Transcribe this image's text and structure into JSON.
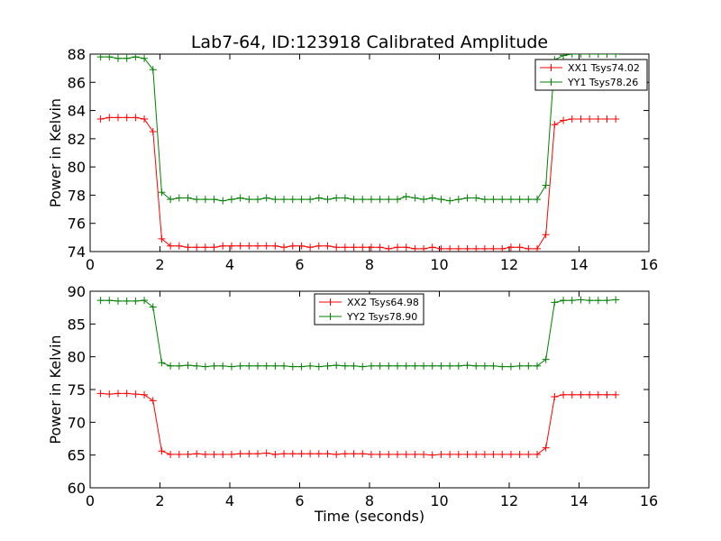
{
  "title": "Lab7-64, ID:123918 Calibrated Amplitude",
  "chart_data": [
    {
      "type": "line",
      "xlim": [
        0,
        16
      ],
      "ylim": [
        74,
        88
      ],
      "xticks": [
        "0",
        "2",
        "4",
        "6",
        "8",
        "10",
        "12",
        "14",
        "16"
      ],
      "yticks": [
        "74",
        "76",
        "78",
        "80",
        "82",
        "84",
        "86",
        "88"
      ],
      "xlabel": "",
      "ylabel": "Power in Kelvin",
      "legend_placement": "top-right",
      "grid": false,
      "series": [
        {
          "name": "XX1 Tsys74.02",
          "color": "#ff0000",
          "x": [
            0.3,
            0.55,
            0.8,
            1.05,
            1.3,
            1.55,
            1.8,
            2.05,
            2.3,
            2.55,
            2.8,
            3.05,
            3.3,
            3.55,
            3.8,
            4.05,
            4.3,
            4.55,
            4.8,
            5.05,
            5.3,
            5.55,
            5.8,
            6.05,
            6.3,
            6.55,
            6.8,
            7.05,
            7.3,
            7.55,
            7.8,
            8.05,
            8.3,
            8.55,
            8.8,
            9.05,
            9.3,
            9.55,
            9.8,
            10.05,
            10.3,
            10.55,
            10.8,
            11.05,
            11.3,
            11.55,
            11.8,
            12.05,
            12.3,
            12.55,
            12.8,
            13.05,
            13.3,
            13.55,
            13.8,
            14.05,
            14.3,
            14.55,
            14.8,
            15.05
          ],
          "y": [
            83.4,
            83.5,
            83.5,
            83.5,
            83.5,
            83.4,
            82.5,
            74.9,
            74.4,
            74.4,
            74.3,
            74.3,
            74.3,
            74.3,
            74.4,
            74.4,
            74.4,
            74.4,
            74.4,
            74.4,
            74.4,
            74.3,
            74.4,
            74.4,
            74.3,
            74.4,
            74.4,
            74.3,
            74.3,
            74.3,
            74.3,
            74.3,
            74.3,
            74.2,
            74.3,
            74.3,
            74.2,
            74.2,
            74.3,
            74.2,
            74.2,
            74.2,
            74.2,
            74.2,
            74.2,
            74.2,
            74.2,
            74.3,
            74.3,
            74.2,
            74.2,
            75.2,
            83.0,
            83.3,
            83.4,
            83.4,
            83.4,
            83.4,
            83.4,
            83.4
          ]
        },
        {
          "name": "YY1 Tsys78.26",
          "color": "#008000",
          "x": [
            0.3,
            0.55,
            0.8,
            1.05,
            1.3,
            1.55,
            1.8,
            2.05,
            2.3,
            2.55,
            2.8,
            3.05,
            3.3,
            3.55,
            3.8,
            4.05,
            4.3,
            4.55,
            4.8,
            5.05,
            5.3,
            5.55,
            5.8,
            6.05,
            6.3,
            6.55,
            6.8,
            7.05,
            7.3,
            7.55,
            7.8,
            8.05,
            8.3,
            8.55,
            8.8,
            9.05,
            9.3,
            9.55,
            9.8,
            10.05,
            10.3,
            10.55,
            10.8,
            11.05,
            11.3,
            11.55,
            11.8,
            12.05,
            12.3,
            12.55,
            12.8,
            13.05,
            13.3,
            13.55,
            13.8,
            14.05,
            14.3,
            14.55,
            14.8,
            15.05
          ],
          "y": [
            87.8,
            87.8,
            87.7,
            87.7,
            87.8,
            87.7,
            86.9,
            78.2,
            77.7,
            77.8,
            77.8,
            77.7,
            77.7,
            77.7,
            77.6,
            77.7,
            77.8,
            77.7,
            77.7,
            77.8,
            77.7,
            77.7,
            77.7,
            77.7,
            77.7,
            77.8,
            77.7,
            77.8,
            77.8,
            77.7,
            77.7,
            77.7,
            77.7,
            77.7,
            77.7,
            77.9,
            77.8,
            77.7,
            77.8,
            77.7,
            77.6,
            77.7,
            77.8,
            77.8,
            77.7,
            77.7,
            77.7,
            77.7,
            77.7,
            77.7,
            77.7,
            78.7,
            87.6,
            87.9,
            88.0,
            88.0,
            88.0,
            88.0,
            88.0,
            88.0
          ]
        }
      ]
    },
    {
      "type": "line",
      "xlim": [
        0,
        16
      ],
      "ylim": [
        60,
        90
      ],
      "xticks": [
        "0",
        "2",
        "4",
        "6",
        "8",
        "10",
        "12",
        "14",
        "16"
      ],
      "yticks": [
        "60",
        "65",
        "70",
        "75",
        "80",
        "85",
        "90"
      ],
      "xlabel": "Time (seconds)",
      "ylabel": "Power in Kelvin",
      "legend_placement": "top-center",
      "grid": false,
      "series": [
        {
          "name": "XX2 Tsys64.98",
          "color": "#ff0000",
          "x": [
            0.3,
            0.55,
            0.8,
            1.05,
            1.3,
            1.55,
            1.8,
            2.05,
            2.3,
            2.55,
            2.8,
            3.05,
            3.3,
            3.55,
            3.8,
            4.05,
            4.3,
            4.55,
            4.8,
            5.05,
            5.3,
            5.55,
            5.8,
            6.05,
            6.3,
            6.55,
            6.8,
            7.05,
            7.3,
            7.55,
            7.8,
            8.05,
            8.3,
            8.55,
            8.8,
            9.05,
            9.3,
            9.55,
            9.8,
            10.05,
            10.3,
            10.55,
            10.8,
            11.05,
            11.3,
            11.55,
            11.8,
            12.05,
            12.3,
            12.55,
            12.8,
            13.05,
            13.3,
            13.55,
            13.8,
            14.05,
            14.3,
            14.55,
            14.8,
            15.05
          ],
          "y": [
            74.4,
            74.3,
            74.4,
            74.4,
            74.3,
            74.2,
            73.3,
            65.6,
            65.1,
            65.1,
            65.1,
            65.2,
            65.1,
            65.1,
            65.1,
            65.1,
            65.2,
            65.2,
            65.2,
            65.3,
            65.1,
            65.2,
            65.2,
            65.2,
            65.2,
            65.2,
            65.2,
            65.1,
            65.2,
            65.2,
            65.2,
            65.1,
            65.1,
            65.1,
            65.1,
            65.1,
            65.1,
            65.1,
            65.0,
            65.1,
            65.1,
            65.1,
            65.1,
            65.1,
            65.1,
            65.1,
            65.1,
            65.1,
            65.1,
            65.1,
            65.1,
            66.1,
            73.9,
            74.2,
            74.2,
            74.2,
            74.2,
            74.2,
            74.2,
            74.2
          ]
        },
        {
          "name": "YY2 Tsys78.90",
          "color": "#008000",
          "x": [
            0.3,
            0.55,
            0.8,
            1.05,
            1.3,
            1.55,
            1.8,
            2.05,
            2.3,
            2.55,
            2.8,
            3.05,
            3.3,
            3.55,
            3.8,
            4.05,
            4.3,
            4.55,
            4.8,
            5.05,
            5.3,
            5.55,
            5.8,
            6.05,
            6.3,
            6.55,
            6.8,
            7.05,
            7.3,
            7.55,
            7.8,
            8.05,
            8.3,
            8.55,
            8.8,
            9.05,
            9.3,
            9.55,
            9.8,
            10.05,
            10.3,
            10.55,
            10.8,
            11.05,
            11.3,
            11.55,
            11.8,
            12.05,
            12.3,
            12.55,
            12.8,
            13.05,
            13.3,
            13.55,
            13.8,
            14.05,
            14.3,
            14.55,
            14.8,
            15.05
          ],
          "y": [
            88.6,
            88.6,
            88.5,
            88.5,
            88.5,
            88.6,
            87.6,
            79.1,
            78.6,
            78.6,
            78.7,
            78.6,
            78.5,
            78.6,
            78.6,
            78.5,
            78.6,
            78.6,
            78.6,
            78.6,
            78.6,
            78.6,
            78.5,
            78.5,
            78.6,
            78.5,
            78.6,
            78.7,
            78.6,
            78.6,
            78.5,
            78.6,
            78.6,
            78.6,
            78.6,
            78.6,
            78.6,
            78.6,
            78.6,
            78.6,
            78.6,
            78.6,
            78.7,
            78.6,
            78.6,
            78.6,
            78.5,
            78.5,
            78.6,
            78.6,
            78.6,
            79.6,
            88.3,
            88.6,
            88.6,
            88.7,
            88.6,
            88.6,
            88.6,
            88.7
          ]
        }
      ]
    }
  ]
}
